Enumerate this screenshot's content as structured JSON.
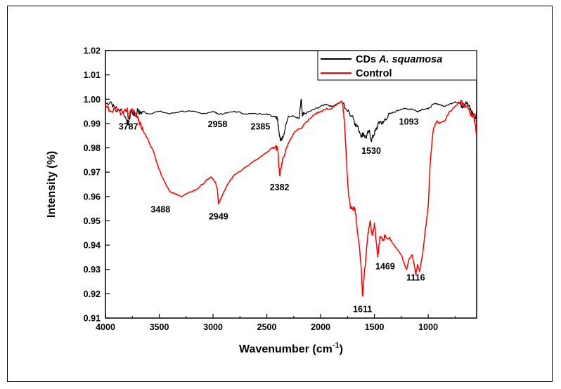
{
  "chart_data": {
    "type": "line",
    "title": "",
    "xlabel": "Wavenumber (cm",
    "xlabel_sup": "-1",
    "xlabel_close": ")",
    "ylabel": "Intensity (%)",
    "xlim": [
      4000,
      550
    ],
    "ylim": [
      0.91,
      1.02
    ],
    "x_reversed": true,
    "x_ticks": [
      4000,
      3500,
      3000,
      2500,
      2000,
      1500,
      1000
    ],
    "y_ticks": [
      "0.91",
      "0.92",
      "0.93",
      "0.94",
      "0.95",
      "0.96",
      "0.97",
      "0.98",
      "0.99",
      "1.00",
      "1.01",
      "1.02"
    ],
    "grid": false,
    "legend_position": "top-right",
    "legend": [
      {
        "name_plain": "CDs ",
        "name_italic": "A. squamosa",
        "color": "#000000"
      },
      {
        "name_plain": "Control",
        "name_italic": "",
        "color": "#ff0000"
      }
    ],
    "series": [
      {
        "name": "CDs A. squamosa",
        "color": "#000000",
        "x": [
          4000,
          3950,
          3900,
          3850,
          3800,
          3787,
          3760,
          3720,
          3700,
          3680,
          3650,
          3600,
          3500,
          3400,
          3300,
          3200,
          3100,
          3000,
          2958,
          2900,
          2800,
          2700,
          2600,
          2500,
          2450,
          2420,
          2400,
          2385,
          2370,
          2350,
          2320,
          2300,
          2250,
          2200,
          2180,
          2170,
          2150,
          2100,
          2050,
          2000,
          1950,
          1900,
          1850,
          1800,
          1750,
          1700,
          1680,
          1650,
          1620,
          1600,
          1580,
          1550,
          1530,
          1510,
          1490,
          1470,
          1450,
          1420,
          1400,
          1350,
          1300,
          1250,
          1200,
          1150,
          1100,
          1093,
          1050,
          1000,
          950,
          900,
          850,
          800,
          750,
          700,
          680,
          650,
          620,
          600,
          580,
          560,
          550
        ],
        "y": [
          0.998,
          0.999,
          0.995,
          0.996,
          0.991,
          0.99,
          0.995,
          0.993,
          0.996,
          0.994,
          0.995,
          0.994,
          0.995,
          0.994,
          0.995,
          0.995,
          0.994,
          0.995,
          0.994,
          0.994,
          0.995,
          0.994,
          0.994,
          0.994,
          0.993,
          0.993,
          0.992,
          0.986,
          0.983,
          0.984,
          0.99,
          0.993,
          0.993,
          0.992,
          1.0,
          0.993,
          0.994,
          0.995,
          0.996,
          0.997,
          0.998,
          0.997,
          0.998,
          0.999,
          0.995,
          0.993,
          0.99,
          0.988,
          0.985,
          0.986,
          0.984,
          0.987,
          0.983,
          0.985,
          0.987,
          0.989,
          0.991,
          0.99,
          0.992,
          0.994,
          0.995,
          0.996,
          0.996,
          0.996,
          0.995,
          0.995,
          0.996,
          0.996,
          0.998,
          0.998,
          0.997,
          0.998,
          0.999,
          0.998,
          0.997,
          0.999,
          0.997,
          0.995,
          0.994,
          0.992,
          0.995
        ]
      },
      {
        "name": "Control",
        "color": "#ff0000",
        "x": [
          4000,
          3950,
          3900,
          3850,
          3800,
          3787,
          3760,
          3720,
          3700,
          3680,
          3650,
          3600,
          3550,
          3500,
          3450,
          3400,
          3350,
          3300,
          3250,
          3200,
          3150,
          3100,
          3050,
          3020,
          3000,
          2980,
          2960,
          2949,
          2940,
          2920,
          2900,
          2850,
          2800,
          2700,
          2600,
          2500,
          2450,
          2420,
          2400,
          2382,
          2370,
          2350,
          2300,
          2250,
          2200,
          2150,
          2100,
          2050,
          2000,
          1950,
          1900,
          1850,
          1800,
          1780,
          1760,
          1740,
          1720,
          1700,
          1680,
          1660,
          1640,
          1620,
          1611,
          1600,
          1580,
          1560,
          1540,
          1520,
          1500,
          1480,
          1469,
          1450,
          1420,
          1400,
          1350,
          1300,
          1250,
          1220,
          1200,
          1180,
          1150,
          1130,
          1116,
          1100,
          1080,
          1050,
          1030,
          1000,
          980,
          960,
          950,
          920,
          900,
          850,
          800,
          750,
          700,
          680,
          650,
          620,
          600,
          580,
          560,
          550
        ],
        "y": [
          0.998,
          0.995,
          0.997,
          0.994,
          0.996,
          0.992,
          0.996,
          0.994,
          0.993,
          0.99,
          0.987,
          0.983,
          0.978,
          0.971,
          0.966,
          0.962,
          0.961,
          0.96,
          0.961,
          0.962,
          0.963,
          0.965,
          0.967,
          0.968,
          0.967,
          0.966,
          0.963,
          0.957,
          0.958,
          0.96,
          0.962,
          0.966,
          0.969,
          0.972,
          0.975,
          0.978,
          0.98,
          0.98,
          0.98,
          0.969,
          0.971,
          0.976,
          0.982,
          0.986,
          0.988,
          0.99,
          0.992,
          0.994,
          0.995,
          0.996,
          0.996,
          0.998,
          0.999,
          0.992,
          0.975,
          0.96,
          0.955,
          0.955,
          0.955,
          0.946,
          0.94,
          0.928,
          0.919,
          0.925,
          0.935,
          0.945,
          0.95,
          0.944,
          0.949,
          0.94,
          0.935,
          0.943,
          0.942,
          0.944,
          0.942,
          0.939,
          0.936,
          0.932,
          0.93,
          0.934,
          0.936,
          0.932,
          0.928,
          0.932,
          0.929,
          0.937,
          0.945,
          0.956,
          0.975,
          0.985,
          0.988,
          0.991,
          0.99,
          0.991,
          0.995,
          0.997,
          0.999,
          0.998,
          0.997,
          0.996,
          0.993,
          0.994,
          0.989,
          0.985
        ]
      }
    ],
    "annotations": [
      {
        "text": "3787",
        "x": 3787,
        "y": 0.9875
      },
      {
        "text": "2958",
        "x": 2958,
        "y": 0.9885
      },
      {
        "text": "2385",
        "x": 2560,
        "y": 0.9875
      },
      {
        "text": "1530",
        "x": 1530,
        "y": 0.9775
      },
      {
        "text": "1093",
        "x": 1180,
        "y": 0.9895
      },
      {
        "text": "3488",
        "x": 3488,
        "y": 0.9535
      },
      {
        "text": "2949",
        "x": 2949,
        "y": 0.9505
      },
      {
        "text": "2382",
        "x": 2382,
        "y": 0.9625
      },
      {
        "text": "1611",
        "x": 1611,
        "y": 0.9125
      },
      {
        "text": "1469",
        "x": 1400,
        "y": 0.93
      },
      {
        "text": "1116",
        "x": 1116,
        "y": 0.9255
      }
    ]
  }
}
